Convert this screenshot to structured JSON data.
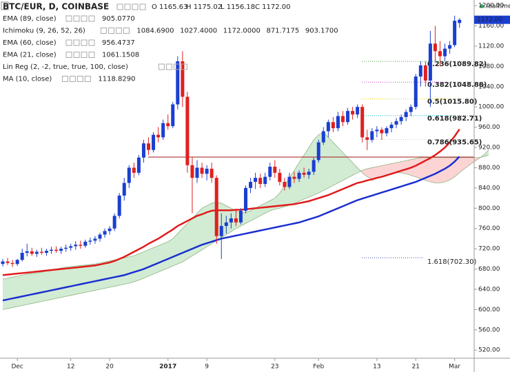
{
  "chart_data": {
    "type": "candlestick",
    "title": "BTC/EUR, D, COINBASE",
    "ohlc_header": [
      "O 1165.63",
      "H 1175.02",
      "L 1156.18",
      "C 1172.00"
    ],
    "status": "realtime",
    "indicators": [
      {
        "name": "EMA (89, close)",
        "values": [
          {
            "text": "905.0770",
            "color": "#1a3fd0"
          }
        ]
      },
      {
        "name": "Ichimoku (9, 26, 52, 26)",
        "values": [
          {
            "text": "1084.6900",
            "color": "#1a6fd0"
          },
          {
            "text": "1027.4000",
            "color": "#8b1a1a"
          },
          {
            "text": "1172.0000",
            "color": "#1e8c1e"
          },
          {
            "text": "871.7175",
            "color": "#1e8c1e"
          },
          {
            "text": "903.1700",
            "color": "#c62828"
          }
        ]
      },
      {
        "name": "EMA (60, close)",
        "values": [
          {
            "text": "956.4737",
            "color": "#d32f2f"
          }
        ]
      },
      {
        "name": "EMA (21, close)",
        "values": [
          {
            "text": "1061.1508",
            "color": "#222222"
          }
        ]
      },
      {
        "name": "Lin Reg (2, -2, true, true, 100, close)",
        "values": [],
        "muted": true
      },
      {
        "name": "MA (10, close)",
        "values": [
          {
            "text": "1118.8290",
            "color": "#222222"
          }
        ]
      }
    ],
    "categories": [
      null,
      null,
      null,
      "Dec",
      null,
      null,
      null,
      null,
      null,
      null,
      null,
      null,
      null,
      null,
      "12",
      null,
      null,
      null,
      null,
      null,
      null,
      null,
      "20",
      null,
      null,
      null,
      null,
      null,
      null,
      null,
      null,
      null,
      null,
      null,
      "2017",
      null,
      null,
      null,
      null,
      null,
      null,
      null,
      "9",
      null,
      null,
      null,
      null,
      null,
      null,
      null,
      null,
      null,
      null,
      null,
      null,
      null,
      "23",
      null,
      null,
      null,
      null,
      null,
      null,
      null,
      null,
      "Feb",
      null,
      null,
      null,
      null,
      null,
      null,
      null,
      null,
      null,
      null,
      null,
      "13",
      null,
      null,
      null,
      null,
      null,
      null,
      null,
      "21",
      null,
      null,
      null,
      null,
      null,
      null,
      null,
      "Mar",
      null,
      null,
      null,
      null,
      null,
      null,
      null
    ],
    "up_color": "#1a3fd0",
    "down_color": "#e02020",
    "ohlc": [
      [
        690,
        700,
        685,
        695
      ],
      [
        695,
        702,
        688,
        692
      ],
      [
        692,
        698,
        684,
        690
      ],
      [
        690,
        700,
        686,
        698
      ],
      [
        698,
        720,
        695,
        712
      ],
      [
        712,
        730,
        705,
        715
      ],
      [
        715,
        722,
        706,
        710
      ],
      [
        710,
        718,
        704,
        714
      ],
      [
        714,
        722,
        708,
        712
      ],
      [
        712,
        720,
        706,
        716
      ],
      [
        716,
        724,
        710,
        718
      ],
      [
        718,
        725,
        712,
        716
      ],
      [
        716,
        724,
        710,
        720
      ],
      [
        720,
        728,
        714,
        722
      ],
      [
        722,
        730,
        716,
        725
      ],
      [
        725,
        735,
        718,
        728
      ],
      [
        728,
        736,
        720,
        726
      ],
      [
        726,
        738,
        722,
        734
      ],
      [
        734,
        742,
        728,
        736
      ],
      [
        736,
        745,
        730,
        740
      ],
      [
        740,
        752,
        734,
        748
      ],
      [
        748,
        760,
        742,
        755
      ],
      [
        755,
        765,
        748,
        760
      ],
      [
        760,
        790,
        755,
        785
      ],
      [
        785,
        830,
        780,
        825
      ],
      [
        825,
        860,
        815,
        850
      ],
      [
        850,
        885,
        840,
        880
      ],
      [
        880,
        890,
        860,
        870
      ],
      [
        870,
        905,
        865,
        900
      ],
      [
        900,
        935,
        890,
        928
      ],
      [
        928,
        940,
        905,
        915
      ],
      [
        915,
        950,
        910,
        945
      ],
      [
        945,
        960,
        930,
        940
      ],
      [
        940,
        975,
        935,
        968
      ],
      [
        968,
        985,
        955,
        962
      ],
      [
        962,
        1010,
        958,
        1005
      ],
      [
        1005,
        1100,
        995,
        1090
      ],
      [
        1090,
        1110,
        1000,
        1020
      ],
      [
        1020,
        1030,
        870,
        885
      ],
      [
        885,
        900,
        790,
        860
      ],
      [
        860,
        895,
        850,
        880
      ],
      [
        880,
        890,
        860,
        868
      ],
      [
        868,
        885,
        855,
        878
      ],
      [
        878,
        890,
        850,
        860
      ],
      [
        860,
        865,
        730,
        745
      ],
      [
        745,
        790,
        700,
        765
      ],
      [
        765,
        785,
        750,
        772
      ],
      [
        772,
        790,
        760,
        780
      ],
      [
        780,
        795,
        765,
        772
      ],
      [
        772,
        800,
        768,
        795
      ],
      [
        795,
        845,
        790,
        840
      ],
      [
        840,
        860,
        830,
        852
      ],
      [
        852,
        870,
        838,
        860
      ],
      [
        860,
        868,
        840,
        848
      ],
      [
        848,
        870,
        842,
        862
      ],
      [
        862,
        890,
        855,
        882
      ],
      [
        882,
        895,
        860,
        870
      ],
      [
        870,
        878,
        845,
        852
      ],
      [
        852,
        860,
        835,
        842
      ],
      [
        842,
        870,
        838,
        862
      ],
      [
        862,
        872,
        850,
        858
      ],
      [
        858,
        875,
        852,
        870
      ],
      [
        870,
        880,
        860,
        866
      ],
      [
        866,
        878,
        858,
        872
      ],
      [
        872,
        900,
        866,
        895
      ],
      [
        895,
        935,
        890,
        930
      ],
      [
        930,
        960,
        925,
        952
      ],
      [
        952,
        975,
        940,
        970
      ],
      [
        970,
        980,
        950,
        958
      ],
      [
        958,
        990,
        952,
        982
      ],
      [
        982,
        992,
        962,
        970
      ],
      [
        970,
        998,
        965,
        992
      ],
      [
        992,
        1000,
        975,
        985
      ],
      [
        985,
        1005,
        978,
        1000
      ],
      [
        1000,
        1005,
        930,
        940
      ],
      [
        940,
        955,
        915,
        935
      ],
      [
        935,
        958,
        930,
        952
      ],
      [
        952,
        962,
        940,
        955
      ],
      [
        955,
        960,
        935,
        948
      ],
      [
        948,
        962,
        942,
        958
      ],
      [
        958,
        970,
        950,
        965
      ],
      [
        965,
        978,
        958,
        972
      ],
      [
        972,
        985,
        965,
        980
      ],
      [
        980,
        995,
        972,
        990
      ],
      [
        990,
        1005,
        982,
        1000
      ],
      [
        1000,
        1065,
        995,
        1060
      ],
      [
        1060,
        1090,
        1040,
        1082
      ],
      [
        1082,
        1090,
        1040,
        1052
      ],
      [
        1052,
        1150,
        1000,
        1125
      ],
      [
        1125,
        1160,
        1090,
        1110
      ],
      [
        1110,
        1130,
        1080,
        1100
      ],
      [
        1100,
        1125,
        1090,
        1115
      ],
      [
        1115,
        1130,
        1105,
        1122
      ],
      [
        1122,
        1180,
        1118,
        1170
      ],
      [
        1165.63,
        1175.02,
        1156.18,
        1172
      ],
      null,
      null,
      null,
      null,
      null,
      null
    ],
    "series": [
      {
        "name": "EMA (60, close)",
        "color": "#e01b1b",
        "width": 2.5,
        "values": [
          668,
          669,
          670,
          671,
          672,
          673,
          674,
          675,
          676,
          677,
          678,
          679,
          680,
          681,
          682,
          683,
          684,
          685,
          686,
          687,
          689,
          691,
          693,
          696,
          700,
          704,
          709,
          714,
          719,
          724,
          730,
          735,
          740,
          746,
          752,
          758,
          765,
          770,
          775,
          780,
          785,
          788,
          792,
          795,
          796,
          796,
          796,
          796,
          797,
          797,
          798,
          799,
          800,
          801,
          802,
          803,
          804,
          805,
          806,
          807,
          808,
          810,
          812,
          814,
          817,
          820,
          823,
          826,
          830,
          834,
          838,
          842,
          846,
          850,
          852,
          855,
          857,
          860,
          862,
          865,
          868,
          871,
          874,
          877,
          880,
          884,
          889,
          894,
          899,
          905,
          912,
          920,
          930,
          942,
          956,
          null,
          null,
          null,
          null,
          null,
          null
        ]
      },
      {
        "name": "EMA (89, close)",
        "color": "#1a2fd0",
        "width": 2.5,
        "values": [
          618,
          620,
          622,
          624,
          626,
          628,
          630,
          632,
          634,
          636,
          638,
          640,
          642,
          644,
          646,
          648,
          650,
          652,
          654,
          656,
          658,
          660,
          662,
          664,
          666,
          668,
          671,
          674,
          677,
          680,
          684,
          688,
          692,
          696,
          700,
          704,
          708,
          712,
          716,
          720,
          724,
          728,
          731,
          734,
          737,
          740,
          742,
          744,
          746,
          748,
          750,
          752,
          754,
          756,
          758,
          760,
          762,
          764,
          766,
          768,
          770,
          772,
          775,
          778,
          781,
          784,
          788,
          792,
          796,
          800,
          804,
          808,
          812,
          816,
          819,
          822,
          825,
          828,
          831,
          834,
          837,
          840,
          843,
          846,
          849,
          852,
          856,
          860,
          864,
          868,
          873,
          878,
          884,
          892,
          902,
          null,
          null,
          null,
          null,
          null,
          null
        ]
      }
    ],
    "cloud": {
      "up_color": "rgba(76,175,80,0.25)",
      "down_color": "rgba(239,83,80,0.25)",
      "line_color": "#6a9a5a",
      "span_a": [
        660,
        662,
        664,
        666,
        668,
        670,
        671,
        672,
        674,
        676,
        678,
        680,
        682,
        684,
        685,
        686,
        687,
        688,
        689,
        690,
        692,
        694,
        696,
        698,
        700,
        702,
        704,
        706,
        710,
        714,
        718,
        722,
        726,
        730,
        734,
        740,
        750,
        760,
        770,
        780,
        790,
        800,
        805,
        810,
        812,
        810,
        805,
        800,
        795,
        790,
        792,
        795,
        800,
        805,
        810,
        815,
        820,
        830,
        845,
        860,
        875,
        890,
        905,
        920,
        935,
        945,
        950,
        940,
        930,
        920,
        910,
        900,
        890,
        880,
        870,
        862,
        858,
        860,
        862,
        865,
        868,
        870,
        870,
        868,
        865,
        862,
        858,
        855,
        852,
        850,
        850,
        852,
        856,
        862,
        870,
        878,
        885,
        892,
        898,
        905,
        915
      ],
      "span_b": [
        600,
        602,
        604,
        606,
        608,
        610,
        612,
        614,
        616,
        618,
        620,
        622,
        624,
        626,
        628,
        630,
        632,
        634,
        636,
        638,
        640,
        642,
        644,
        646,
        648,
        650,
        652,
        655,
        658,
        662,
        666,
        670,
        674,
        678,
        682,
        686,
        690,
        694,
        700,
        706,
        712,
        718,
        724,
        730,
        736,
        742,
        748,
        754,
        760,
        765,
        770,
        775,
        780,
        785,
        790,
        795,
        798,
        800,
        803,
        806,
        810,
        814,
        818,
        822,
        826,
        830,
        835,
        840,
        845,
        850,
        855,
        860,
        865,
        870,
        875,
        878,
        880,
        882,
        884,
        886,
        888,
        890,
        892,
        894,
        896,
        898,
        900,
        900,
        900,
        900,
        900,
        900,
        900,
        900,
        900,
        900,
        900,
        900,
        900,
        902,
        905
      ]
    },
    "reference_line": {
      "value": 901,
      "color": "#a31515"
    },
    "fib_levels": [
      {
        "label": "0.236(1089.82)",
        "value": 1089.82,
        "color": "#43a047"
      },
      {
        "label": "0.382(1048.88)",
        "value": 1048.88,
        "color": "#d63ad6"
      },
      {
        "label": "0.5(1015.80)",
        "value": 1015.8,
        "color": "#e0d000"
      },
      {
        "label": "0.618(982.71)",
        "value": 982.71,
        "color": "#00b0c8"
      },
      {
        "label": "0.786(935.65)",
        "value": 935.65,
        "color": "#c8c8c8"
      },
      {
        "label": "1.618(702.30)",
        "value": 702.3,
        "color": "#3949ab"
      }
    ],
    "last_price": {
      "value": 1172,
      "label": "1172.00"
    },
    "ylim": [
      504,
      1211
    ],
    "yticks": [
      {
        "value": 520,
        "label": "520.00"
      },
      {
        "value": 560,
        "label": "560.00"
      },
      {
        "value": 600,
        "label": "600.00"
      },
      {
        "value": 640,
        "label": "640.00"
      },
      {
        "value": 680,
        "label": "680.00"
      },
      {
        "value": 720,
        "label": "720.00"
      },
      {
        "value": 760,
        "label": "760.00"
      },
      {
        "value": 800,
        "label": "800.00"
      },
      {
        "value": 840,
        "label": "840.00"
      },
      {
        "value": 880,
        "label": "880.00"
      },
      {
        "value": 920,
        "label": "920.00"
      },
      {
        "value": 960,
        "label": "960.00"
      },
      {
        "value": 1000,
        "label": "1000.00"
      },
      {
        "value": 1040,
        "label": "1040.00"
      },
      {
        "value": 1080,
        "label": "1080.00"
      },
      {
        "value": 1120,
        "label": "1120.00"
      },
      {
        "value": 1160,
        "label": "1160.00"
      },
      {
        "value": 1200,
        "label": "1200.00"
      }
    ]
  }
}
